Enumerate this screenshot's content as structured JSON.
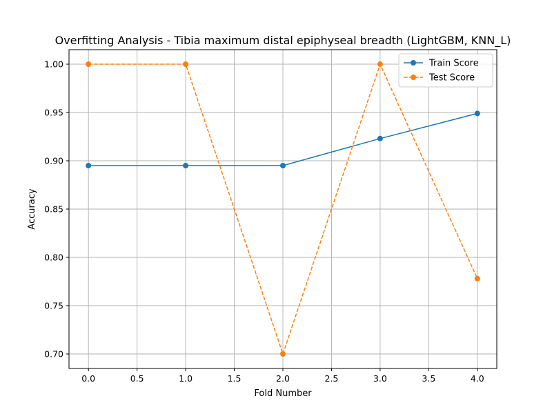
{
  "chart_data": {
    "type": "line",
    "title": "Overfitting Analysis - Tibia maximum distal epiphyseal breadth (LightGBM, KNN_L)",
    "xlabel": "Fold Number",
    "ylabel": "Accuracy",
    "xlim": [
      -0.2,
      4.2
    ],
    "ylim": [
      0.685,
      1.015
    ],
    "xticks": [
      0.0,
      0.5,
      1.0,
      1.5,
      2.0,
      2.5,
      3.0,
      3.5,
      4.0
    ],
    "xtick_labels": [
      "0.0",
      "0.5",
      "1.0",
      "1.5",
      "2.0",
      "2.5",
      "3.0",
      "3.5",
      "4.0"
    ],
    "yticks": [
      0.7,
      0.75,
      0.8,
      0.85,
      0.9,
      0.95,
      1.0
    ],
    "ytick_labels": [
      "0.70",
      "0.75",
      "0.80",
      "0.85",
      "0.90",
      "0.95",
      "1.00"
    ],
    "grid": true,
    "legend_position": "top-right",
    "x": [
      0,
      1,
      2,
      3,
      4
    ],
    "series": [
      {
        "name": "Train Score",
        "values": [
          0.895,
          0.895,
          0.895,
          0.923,
          0.949
        ],
        "color": "#1f77b4",
        "style": "solid",
        "marker": "circle"
      },
      {
        "name": "Test Score",
        "values": [
          1.0,
          1.0,
          0.7,
          1.0,
          0.778
        ],
        "color": "#ff7f0e",
        "style": "dashed",
        "marker": "circle"
      }
    ]
  }
}
